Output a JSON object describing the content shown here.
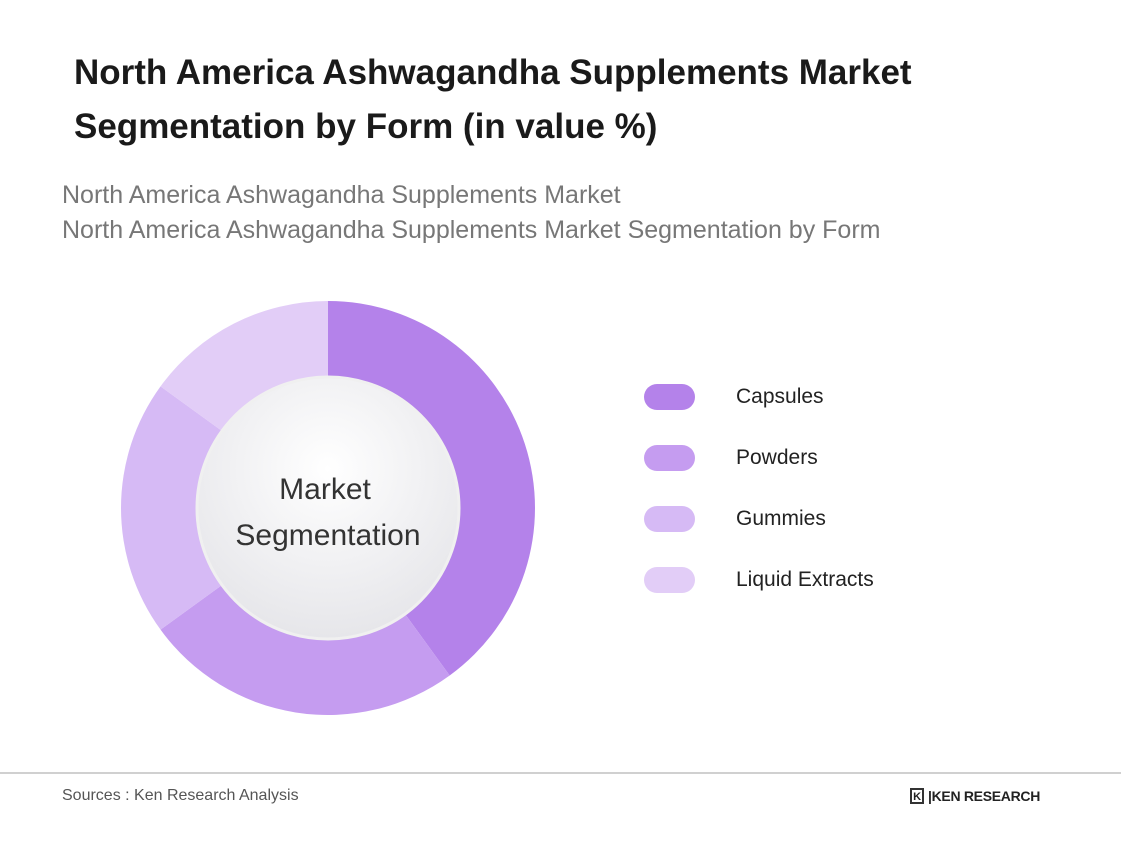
{
  "title": "North America Ashwagandha Supplements Market Segmentation by Form (in value %)",
  "subtitles": [
    "North America Ashwagandha Supplements Market",
    "North America Ashwagandha Supplements Market Segmentation by Form"
  ],
  "chart_data": {
    "type": "pie",
    "donut": true,
    "center_label": [
      "Market",
      "Segmentation"
    ],
    "categories": [
      "Capsules",
      "Powders",
      "Gummies",
      "Liquid Extracts"
    ],
    "values": [
      40,
      25,
      20,
      15
    ],
    "colors": [
      "#b482ea",
      "#c59cf0",
      "#d6baf5",
      "#e2cdf7"
    ],
    "legend": "right"
  },
  "footer": {
    "source": "Sources : Ken Research Analysis",
    "logo": "KEN RESEARCH"
  }
}
